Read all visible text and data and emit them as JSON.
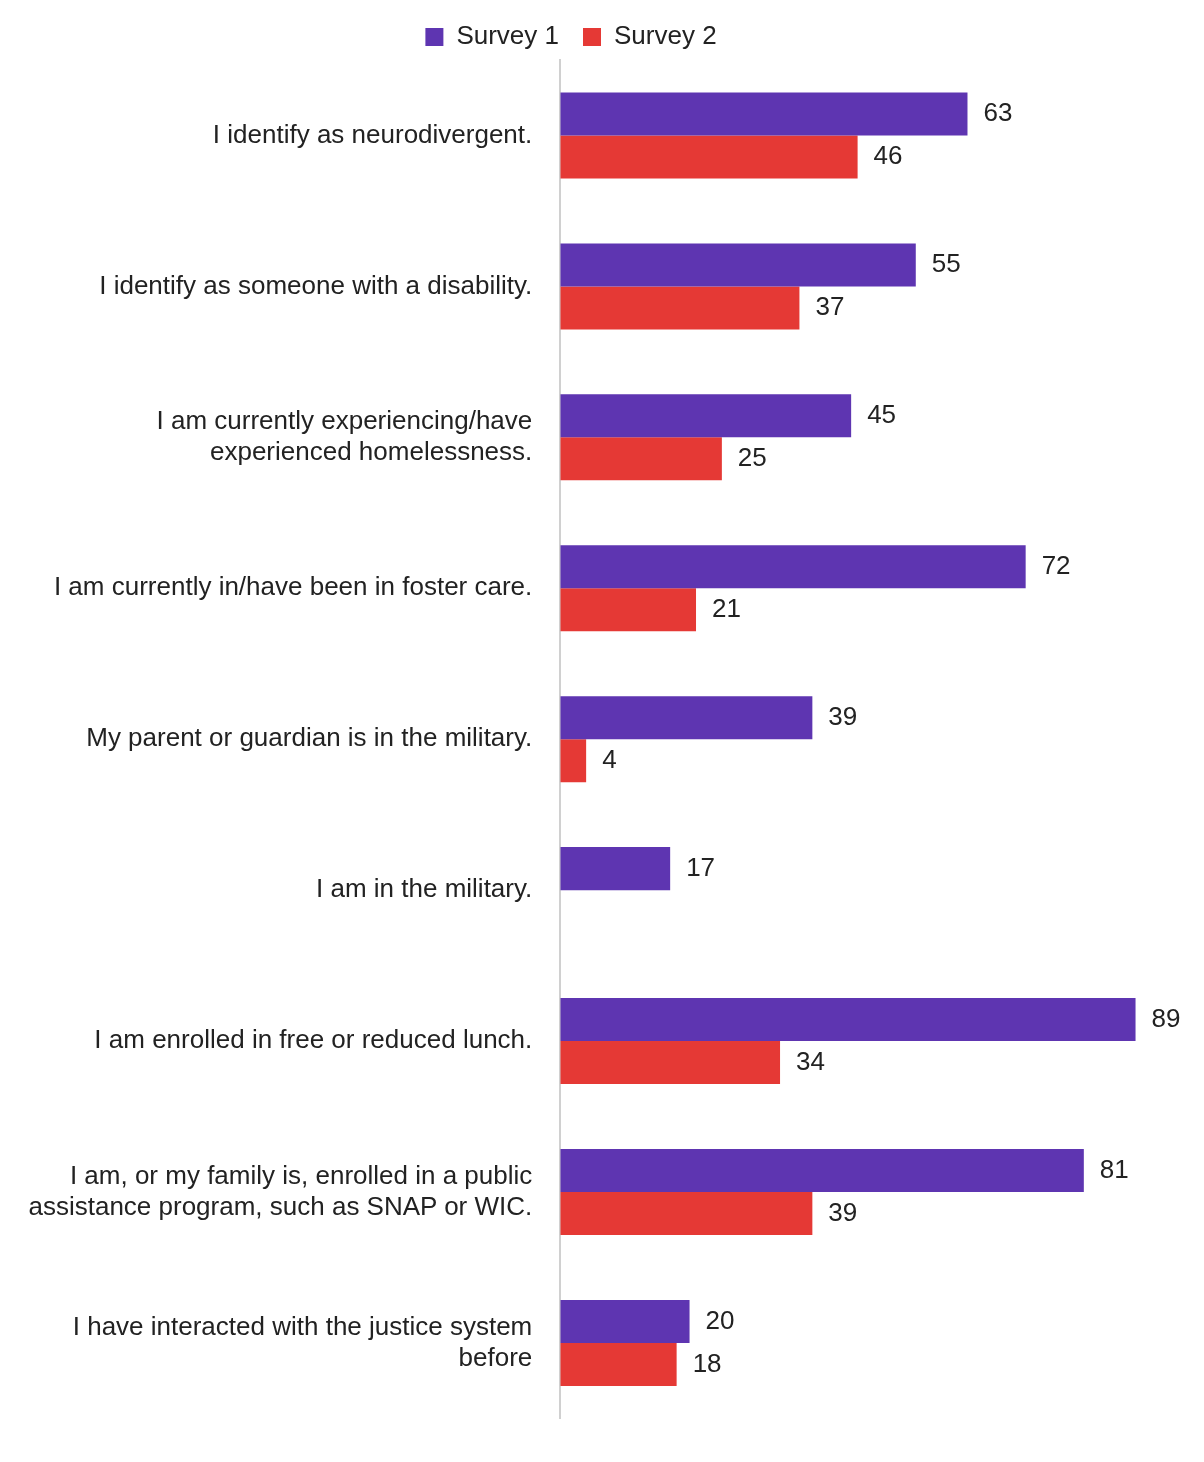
{
  "chart_data": {
    "type": "bar",
    "orientation": "horizontal",
    "categories": [
      "I identify as neurodivergent.",
      "I identify as someone with a disability.",
      "I am currently experiencing/have experienced homelessness.",
      "I am currently in/have been in foster care.",
      "My parent or guardian is in the military.",
      "I am in the military.",
      "I am enrolled in free or reduced lunch.",
      "I am, or my family is, enrolled in a public assistance program, such as SNAP or WIC.",
      "I have interacted with the justice system before"
    ],
    "series": [
      {
        "name": "Survey 1",
        "color": "#5e35b1",
        "values": [
          63,
          55,
          45,
          72,
          39,
          17,
          89,
          81,
          20
        ]
      },
      {
        "name": "Survey 2",
        "color": "#e53935",
        "values": [
          46,
          37,
          25,
          21,
          4,
          null,
          34,
          39,
          18
        ]
      }
    ],
    "data_labels": true,
    "legend": "top"
  }
}
